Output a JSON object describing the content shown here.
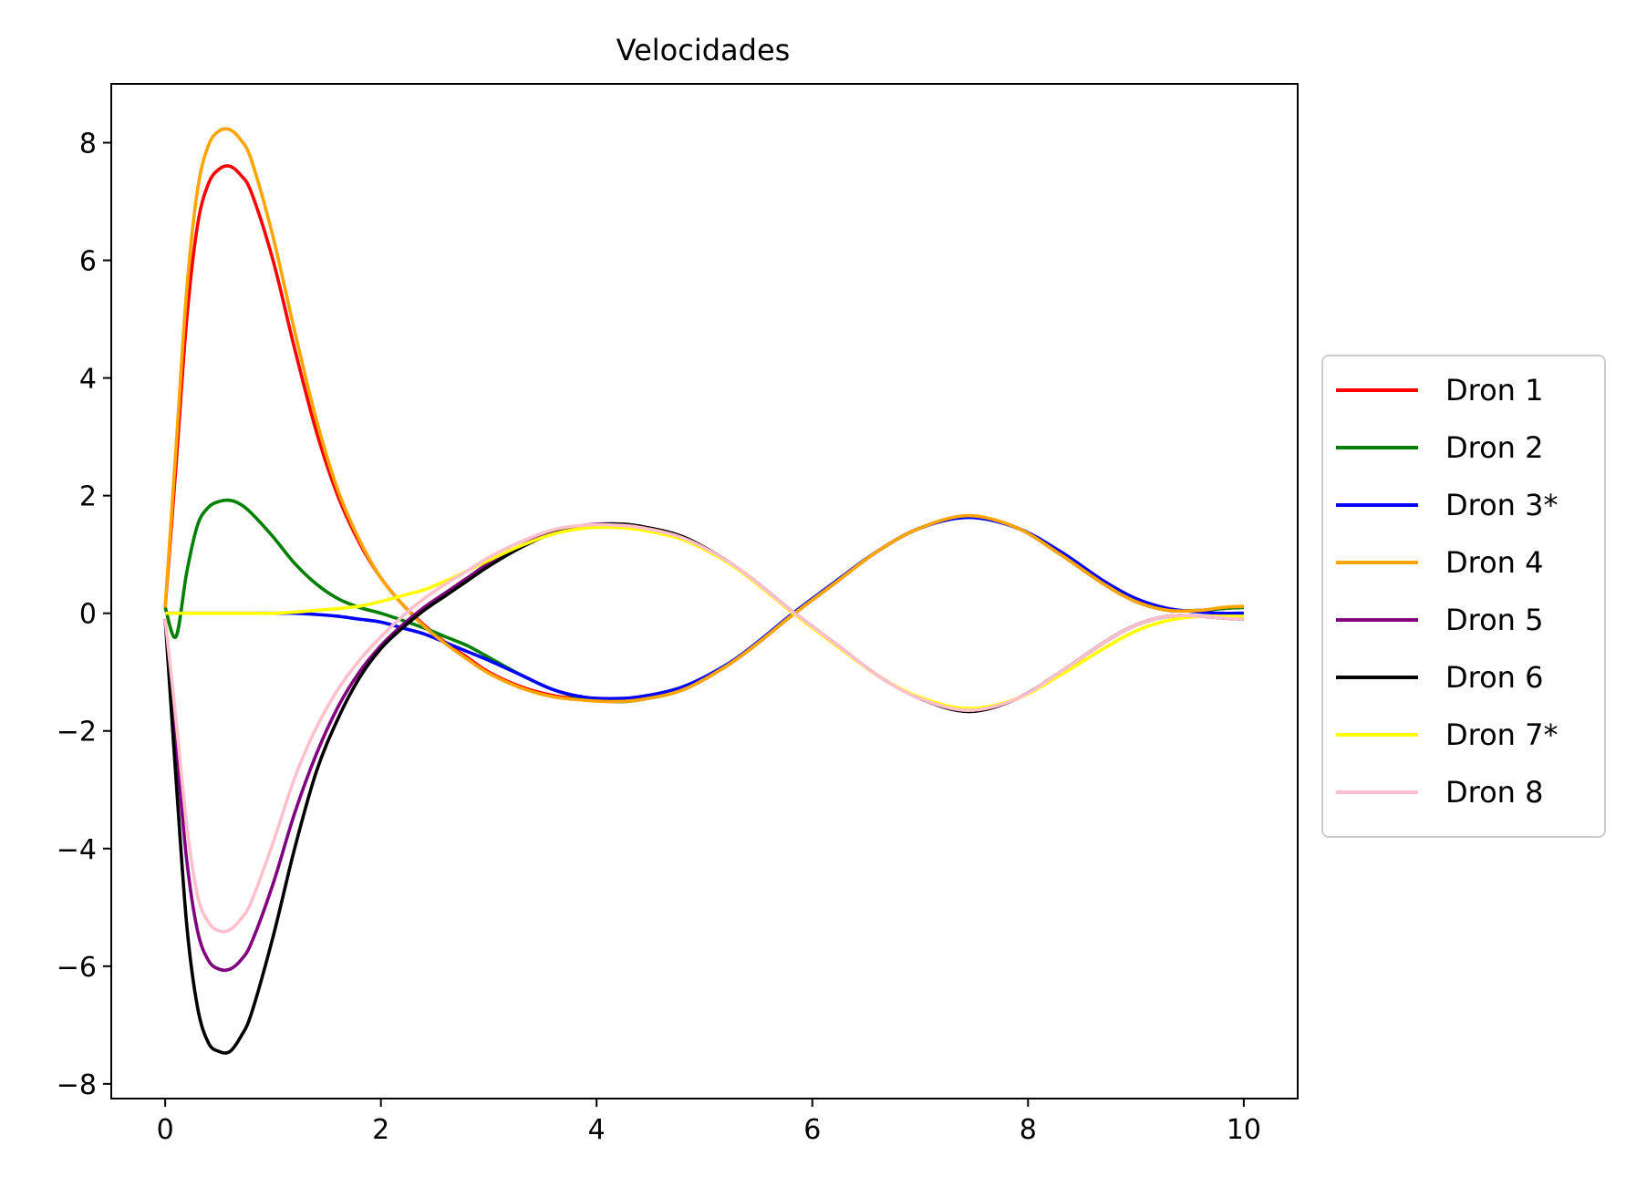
{
  "chart_data": {
    "type": "line",
    "title": "Velocidades",
    "xlabel": "",
    "ylabel": "",
    "xlim": [
      -0.5,
      10.5
    ],
    "ylim": [
      -8.25,
      9.0
    ],
    "xticks": [
      0,
      2,
      4,
      6,
      8,
      10
    ],
    "xtick_labels": [
      "0",
      "2",
      "4",
      "6",
      "8",
      "10"
    ],
    "yticks": [
      8,
      6,
      4,
      2,
      0,
      -2,
      -4,
      -6,
      -8
    ],
    "ytick_labels": [
      "8",
      "6",
      "4",
      "2",
      "0",
      "−2",
      "−4",
      "−6",
      "−8"
    ],
    "grid": false,
    "legend_position": "center-right-outside",
    "x": [
      0,
      0.1,
      0.2,
      0.3,
      0.4,
      0.5,
      0.6,
      0.7,
      0.8,
      1.0,
      1.2,
      1.4,
      1.6,
      1.8,
      2.0,
      2.2,
      2.4,
      2.6,
      2.8,
      3.0,
      3.3,
      3.6,
      3.9,
      4.15,
      4.4,
      4.8,
      5.2,
      5.5,
      5.8,
      6.2,
      6.6,
      7.0,
      7.45,
      7.9,
      8.3,
      8.7,
      9.0,
      9.3,
      9.6,
      9.8,
      10.0
    ],
    "series": [
      {
        "name": "Dron 1",
        "color": "#ff0000",
        "values": [
          0.1,
          2.5,
          5.0,
          6.6,
          7.3,
          7.55,
          7.6,
          7.45,
          7.15,
          6.0,
          4.5,
          3.1,
          2.0,
          1.2,
          0.6,
          0.15,
          -0.2,
          -0.5,
          -0.75,
          -1.0,
          -1.25,
          -1.4,
          -1.47,
          -1.5,
          -1.47,
          -1.3,
          -0.9,
          -0.5,
          -0.05,
          0.5,
          1.05,
          1.45,
          1.65,
          1.45,
          1.0,
          0.5,
          0.2,
          0.05,
          0.05,
          0.08,
          0.1
        ]
      },
      {
        "name": "Dron 2",
        "color": "#008000",
        "values": [
          0.1,
          -0.4,
          0.7,
          1.5,
          1.8,
          1.9,
          1.92,
          1.85,
          1.7,
          1.3,
          0.85,
          0.5,
          0.25,
          0.1,
          0.0,
          -0.12,
          -0.25,
          -0.4,
          -0.55,
          -0.75,
          -1.05,
          -1.3,
          -1.45,
          -1.5,
          -1.47,
          -1.3,
          -0.9,
          -0.5,
          -0.05,
          0.5,
          1.05,
          1.45,
          1.65,
          1.45,
          1.0,
          0.5,
          0.2,
          0.05,
          0.05,
          0.08,
          0.1
        ]
      },
      {
        "name": "Dron 3*",
        "color": "#0000ff",
        "values": [
          0.0,
          0.0,
          0.0,
          0.0,
          0.0,
          0.0,
          0.0,
          0.0,
          0.0,
          0.0,
          0.0,
          -0.02,
          -0.05,
          -0.1,
          -0.15,
          -0.25,
          -0.35,
          -0.5,
          -0.65,
          -0.8,
          -1.05,
          -1.3,
          -1.43,
          -1.45,
          -1.42,
          -1.25,
          -0.88,
          -0.48,
          -0.03,
          0.52,
          1.05,
          1.45,
          1.63,
          1.45,
          1.05,
          0.55,
          0.25,
          0.08,
          0.02,
          0.0,
          0.0
        ]
      },
      {
        "name": "Dron 4",
        "color": "#ffa500",
        "values": [
          0.1,
          2.8,
          5.5,
          7.2,
          7.95,
          8.2,
          8.22,
          8.05,
          7.7,
          6.4,
          4.8,
          3.3,
          2.1,
          1.25,
          0.6,
          0.15,
          -0.22,
          -0.52,
          -0.78,
          -1.02,
          -1.27,
          -1.42,
          -1.48,
          -1.5,
          -1.47,
          -1.3,
          -0.9,
          -0.5,
          -0.05,
          0.5,
          1.05,
          1.45,
          1.66,
          1.45,
          1.0,
          0.5,
          0.2,
          0.05,
          0.05,
          0.1,
          0.12
        ]
      },
      {
        "name": "Dron 5",
        "color": "#800080",
        "values": [
          -0.1,
          -2.2,
          -4.2,
          -5.4,
          -5.9,
          -6.05,
          -6.05,
          -5.9,
          -5.6,
          -4.6,
          -3.4,
          -2.4,
          -1.6,
          -1.0,
          -0.55,
          -0.2,
          0.1,
          0.35,
          0.6,
          0.85,
          1.15,
          1.38,
          1.5,
          1.52,
          1.48,
          1.3,
          0.9,
          0.5,
          0.05,
          -0.5,
          -1.05,
          -1.45,
          -1.67,
          -1.45,
          -1.0,
          -0.5,
          -0.2,
          -0.05,
          -0.05,
          -0.08,
          -0.1
        ]
      },
      {
        "name": "Dron 6",
        "color": "#000000",
        "values": [
          -0.1,
          -2.8,
          -5.3,
          -6.7,
          -7.3,
          -7.45,
          -7.45,
          -7.2,
          -6.8,
          -5.5,
          -4.0,
          -2.7,
          -1.8,
          -1.1,
          -0.6,
          -0.25,
          0.05,
          0.3,
          0.55,
          0.8,
          1.12,
          1.36,
          1.48,
          1.52,
          1.48,
          1.3,
          0.9,
          0.5,
          0.05,
          -0.5,
          -1.05,
          -1.45,
          -1.67,
          -1.45,
          -1.0,
          -0.5,
          -0.2,
          -0.05,
          -0.05,
          -0.08,
          -0.1
        ]
      },
      {
        "name": "Dron 7*",
        "color": "#ffff00",
        "values": [
          0.0,
          0.0,
          0.0,
          0.0,
          0.0,
          0.0,
          0.0,
          0.0,
          0.0,
          0.0,
          0.02,
          0.05,
          0.08,
          0.12,
          0.2,
          0.3,
          0.4,
          0.55,
          0.72,
          0.9,
          1.15,
          1.35,
          1.45,
          1.46,
          1.42,
          1.25,
          0.88,
          0.48,
          0.03,
          -0.52,
          -1.05,
          -1.43,
          -1.62,
          -1.45,
          -1.05,
          -0.6,
          -0.3,
          -0.12,
          -0.05,
          -0.05,
          -0.05
        ]
      },
      {
        "name": "Dron 8",
        "color": "#ffc0cb",
        "values": [
          -0.1,
          -1.8,
          -3.6,
          -4.8,
          -5.25,
          -5.4,
          -5.38,
          -5.2,
          -4.9,
          -3.9,
          -2.8,
          -1.95,
          -1.3,
          -0.8,
          -0.4,
          -0.05,
          0.25,
          0.5,
          0.72,
          0.95,
          1.22,
          1.42,
          1.5,
          1.5,
          1.46,
          1.28,
          0.9,
          0.5,
          0.05,
          -0.5,
          -1.05,
          -1.45,
          -1.65,
          -1.45,
          -1.0,
          -0.5,
          -0.2,
          -0.05,
          -0.05,
          -0.08,
          -0.1
        ]
      }
    ]
  }
}
